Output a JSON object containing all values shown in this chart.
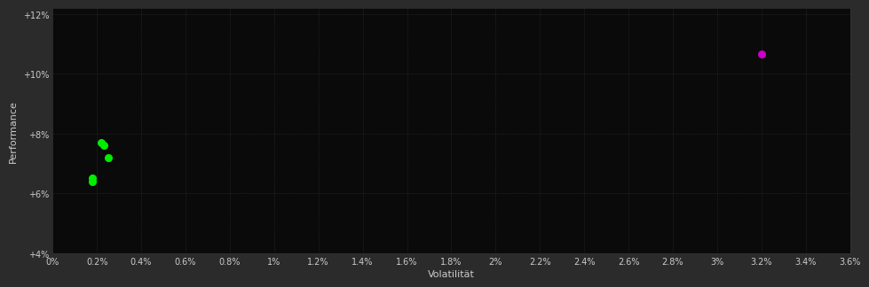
{
  "background_color": "#2b2b2b",
  "plot_bg_color": "#0a0a0a",
  "grid_color": "#333333",
  "xlabel": "Volatilität",
  "ylabel": "Performance",
  "xlim": [
    0.0,
    0.036
  ],
  "ylim": [
    0.04,
    0.122
  ],
  "xtick_values": [
    0.0,
    0.002,
    0.004,
    0.006,
    0.008,
    0.01,
    0.012,
    0.014,
    0.016,
    0.018,
    0.02,
    0.022,
    0.024,
    0.026,
    0.028,
    0.03,
    0.032,
    0.034,
    0.036
  ],
  "xtick_labels": [
    "0%",
    "0.2%",
    "0.4%",
    "0.6%",
    "0.8%",
    "1%",
    "1.2%",
    "1.4%",
    "1.6%",
    "1.8%",
    "2%",
    "2.2%",
    "2.4%",
    "2.6%",
    "2.8%",
    "3%",
    "3.2%",
    "3.4%",
    "3.6%"
  ],
  "ytick_values": [
    0.04,
    0.06,
    0.08,
    0.1,
    0.12
  ],
  "ytick_labels": [
    "+4%",
    "+6%",
    "+8%",
    "+10%",
    "+12%"
  ],
  "green_points": [
    [
      0.0018,
      0.065
    ],
    [
      0.0018,
      0.064
    ],
    [
      0.0022,
      0.077
    ],
    [
      0.0023,
      0.076
    ],
    [
      0.0025,
      0.072
    ]
  ],
  "magenta_points": [
    [
      0.032,
      0.1065
    ]
  ],
  "green_color": "#00ee00",
  "magenta_color": "#cc00cc",
  "text_color": "#cccccc",
  "tick_color": "#cccccc",
  "grid_linestyle": ":",
  "grid_linewidth": 0.5,
  "marker_size": 30
}
